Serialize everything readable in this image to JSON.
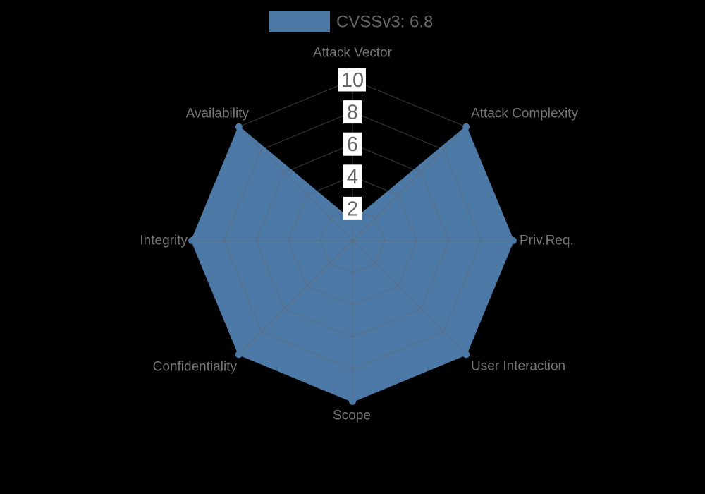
{
  "chart_data": {
    "type": "radar",
    "legend": {
      "label": "CVSSv3: 6.8",
      "position": "top-center"
    },
    "axes": [
      "Attack Vector",
      "Attack Complexity",
      "Priv.Req.",
      "User Interaction",
      "Scope",
      "Confidentiality",
      "Integrity",
      "Availability"
    ],
    "series": [
      {
        "name": "CVSSv3: 6.8",
        "values": [
          1.2,
          10,
          10,
          10,
          10,
          10,
          10,
          10
        ]
      }
    ],
    "radial_axis": {
      "min": 0,
      "max": 10,
      "tick_values": [
        10,
        8,
        6,
        4,
        2
      ],
      "tick_labels": [
        "10",
        "8",
        "6",
        "4",
        "2"
      ]
    },
    "grid": {
      "shape": "polygon",
      "levels": 5,
      "spokes": 8,
      "visible": true
    }
  },
  "colors": {
    "area": "#4d79a7",
    "area_line": "#4d79a7",
    "grid": "#666666",
    "tick_box": "#ffffff",
    "tick_text": "#666666",
    "axis_label": "#767676",
    "legend_text": "#666666",
    "background": "#000000"
  }
}
